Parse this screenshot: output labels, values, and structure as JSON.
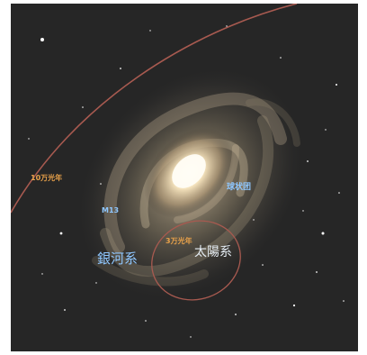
{
  "labels": {
    "ring_100k": "10万光年",
    "cluster": "M13",
    "halo": "球状团",
    "ring_30k": "3万光年",
    "solar_system": "太陽系",
    "galaxy": "銀河系"
  },
  "colors": {
    "background": "#262626",
    "distance_marker": "#e8a14a",
    "feature_label": "#8fc7ff",
    "main_label": "#e6eef5",
    "ring_line": "#a85a50"
  }
}
